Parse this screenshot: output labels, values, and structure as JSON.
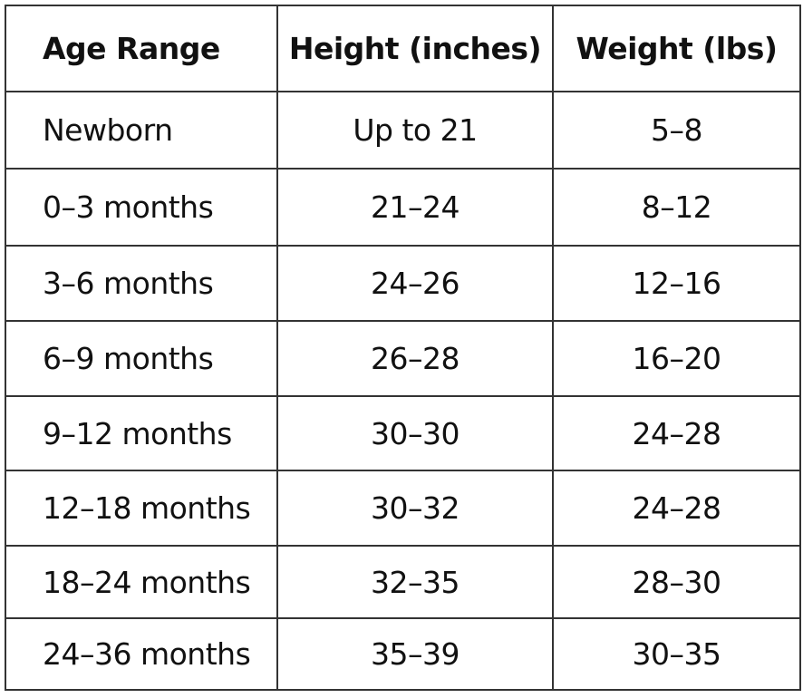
{
  "table": {
    "header": [
      "Age Range",
      "Height (inches)",
      "Weight (lbs)"
    ],
    "rows": [
      [
        "Newborn",
        "Up to 21",
        "5–8"
      ],
      [
        "0–3 months",
        "21–24",
        "8–12"
      ],
      [
        "3–6 months",
        "24–26",
        "12–16"
      ],
      [
        "6–9 months",
        "26–28",
        "16–20"
      ],
      [
        "9–12 months",
        "30–30",
        "24–28"
      ],
      [
        "12–18 months",
        "30–32",
        "24–28"
      ],
      [
        "18–24 months",
        "32–35",
        "28–30"
      ],
      [
        "24–36 months",
        "35–39",
        "30–35"
      ]
    ]
  }
}
